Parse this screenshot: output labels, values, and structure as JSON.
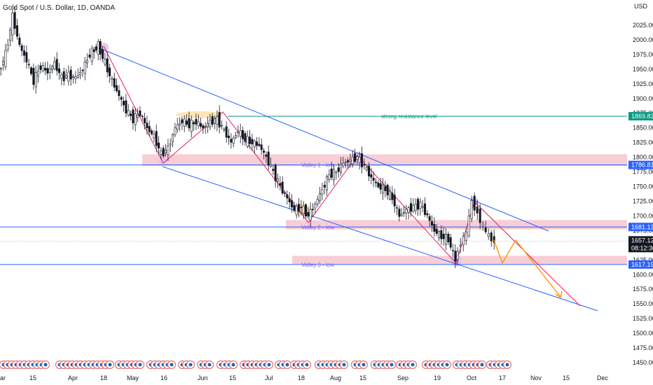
{
  "header": {
    "title": "Gold Spot / U.S. Dollar, 1D, OANDA",
    "currency": "USD"
  },
  "colors": {
    "up": "#ffffff",
    "down": "#131722",
    "wick": "#131722",
    "channel": "#2962ff",
    "resistance": "#089981",
    "zone": "#f7c6cf",
    "red_trend": "#e91e63",
    "arrow": "#ff9800",
    "price": "#131722",
    "tag_blue": "#2962ff",
    "tag_green": "#089981",
    "tag_dark": "#131722"
  },
  "y_axis": {
    "ticks": [
      "2025.000",
      "2000.000",
      "1975.000",
      "1950.000",
      "1925.000",
      "1900.000",
      "1875.000",
      "1850.000",
      "1825.000",
      "1800.000",
      "1775.000",
      "1750.000",
      "1725.000",
      "1700.000",
      "1675.000",
      "1650.000",
      "1625.000",
      "1600.000",
      "1575.000",
      "1550.000",
      "1525.000",
      "1500.000",
      "1475.000",
      "1450.000"
    ]
  },
  "x_axis": {
    "ticks": [
      "ar",
      "15",
      "Apr",
      "18",
      "May",
      "16",
      "Jun",
      "15",
      "Jul",
      "18",
      "Aug",
      "15",
      "Sep",
      "19",
      "Oct",
      "17",
      "Nov",
      "15",
      "Dec"
    ]
  },
  "price_tags": [
    {
      "label": "1869.832",
      "kind": "tag_green"
    },
    {
      "label": "1786.818",
      "kind": "tag_blue"
    },
    {
      "label": "1681.132",
      "kind": "tag_blue"
    },
    {
      "label": "1657.120",
      "kind": "tag_dark"
    },
    {
      "label": "08:12:30",
      "kind": "tag_dark"
    },
    {
      "label": "1617.199",
      "kind": "tag_blue"
    }
  ],
  "annotations": {
    "resistance": "strong resistance level",
    "valley1": "Valley 1 - low",
    "valley2": "Valley 2 - low",
    "valley3": "Valley 3 - low"
  },
  "levels": {
    "resistance": 1869.832,
    "valley1": 1786.818,
    "valley2": 1681.132,
    "valley3": 1617.199,
    "last": 1657.12
  },
  "chart_data": {
    "type": "candlestick",
    "symbol": "XAUUSD",
    "timeframe": "1D",
    "ylim": [
      1440,
      2050
    ],
    "close_path": [
      {
        "x": 0,
        "c": 1945
      },
      {
        "x": 10,
        "c": 1975
      },
      {
        "x": 20,
        "c": 2040
      },
      {
        "x": 30,
        "c": 1990
      },
      {
        "x": 40,
        "c": 1965
      },
      {
        "x": 50,
        "c": 1930
      },
      {
        "x": 60,
        "c": 1955
      },
      {
        "x": 70,
        "c": 1945
      },
      {
        "x": 80,
        "c": 1960
      },
      {
        "x": 90,
        "c": 1935
      },
      {
        "x": 100,
        "c": 1940
      },
      {
        "x": 110,
        "c": 1935
      },
      {
        "x": 120,
        "c": 1950
      },
      {
        "x": 130,
        "c": 1975
      },
      {
        "x": 142,
        "c": 1990
      },
      {
        "x": 152,
        "c": 1960
      },
      {
        "x": 162,
        "c": 1930
      },
      {
        "x": 172,
        "c": 1905
      },
      {
        "x": 182,
        "c": 1880
      },
      {
        "x": 192,
        "c": 1865
      },
      {
        "x": 202,
        "c": 1875
      },
      {
        "x": 212,
        "c": 1850
      },
      {
        "x": 222,
        "c": 1835
      },
      {
        "x": 232,
        "c": 1805
      },
      {
        "x": 242,
        "c": 1815
      },
      {
        "x": 252,
        "c": 1850
      },
      {
        "x": 262,
        "c": 1862
      },
      {
        "x": 272,
        "c": 1855
      },
      {
        "x": 282,
        "c": 1860
      },
      {
        "x": 292,
        "c": 1850
      },
      {
        "x": 302,
        "c": 1860
      },
      {
        "x": 312,
        "c": 1865
      },
      {
        "x": 322,
        "c": 1845
      },
      {
        "x": 332,
        "c": 1825
      },
      {
        "x": 342,
        "c": 1845
      },
      {
        "x": 352,
        "c": 1830
      },
      {
        "x": 362,
        "c": 1825
      },
      {
        "x": 372,
        "c": 1820
      },
      {
        "x": 382,
        "c": 1800
      },
      {
        "x": 392,
        "c": 1775
      },
      {
        "x": 402,
        "c": 1750
      },
      {
        "x": 412,
        "c": 1730
      },
      {
        "x": 422,
        "c": 1710
      },
      {
        "x": 432,
        "c": 1715
      },
      {
        "x": 442,
        "c": 1700
      },
      {
        "x": 452,
        "c": 1720
      },
      {
        "x": 462,
        "c": 1745
      },
      {
        "x": 472,
        "c": 1770
      },
      {
        "x": 482,
        "c": 1775
      },
      {
        "x": 492,
        "c": 1790
      },
      {
        "x": 502,
        "c": 1795
      },
      {
        "x": 512,
        "c": 1800
      },
      {
        "x": 522,
        "c": 1785
      },
      {
        "x": 532,
        "c": 1765
      },
      {
        "x": 542,
        "c": 1750
      },
      {
        "x": 552,
        "c": 1745
      },
      {
        "x": 562,
        "c": 1730
      },
      {
        "x": 572,
        "c": 1700
      },
      {
        "x": 582,
        "c": 1710
      },
      {
        "x": 592,
        "c": 1715
      },
      {
        "x": 602,
        "c": 1720
      },
      {
        "x": 612,
        "c": 1700
      },
      {
        "x": 622,
        "c": 1675
      },
      {
        "x": 632,
        "c": 1665
      },
      {
        "x": 642,
        "c": 1660
      },
      {
        "x": 652,
        "c": 1625
      },
      {
        "x": 660,
        "c": 1655
      },
      {
        "x": 668,
        "c": 1670
      },
      {
        "x": 676,
        "c": 1725
      },
      {
        "x": 684,
        "c": 1705
      },
      {
        "x": 692,
        "c": 1680
      },
      {
        "x": 700,
        "c": 1665
      },
      {
        "x": 708,
        "c": 1657
      }
    ]
  },
  "footer": {
    "event_icon_count": 80
  }
}
